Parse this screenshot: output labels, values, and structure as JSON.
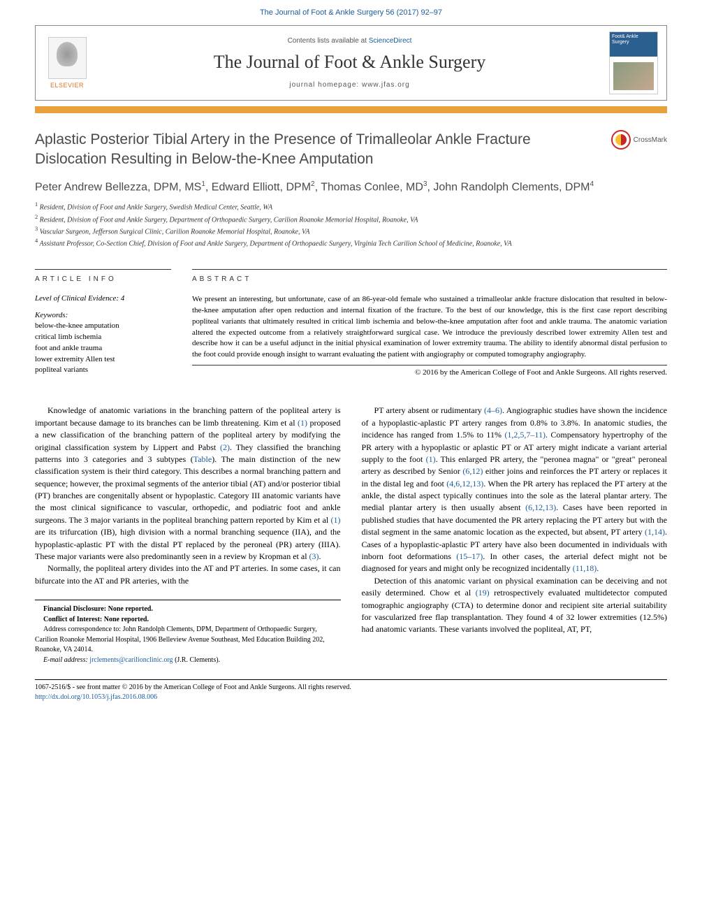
{
  "top_link": "The Journal of Foot & Ankle Surgery 56 (2017) 92–97",
  "header": {
    "contents_prefix": "Contents lists available at ",
    "contents_link": "ScienceDirect",
    "journal_name": "The Journal of Foot & Ankle Surgery",
    "homepage_label": "journal homepage: ",
    "homepage_url": "www.jfas.org",
    "elsevier": "ELSEVIER",
    "cover_text": "Foot& Ankle Surgery"
  },
  "colors": {
    "header_bar": "#e8a03c",
    "link": "#1a5c9e",
    "elsevier_orange": "#e37222",
    "cover_blue": "#2a5f8f"
  },
  "crossmark_label": "CrossMark",
  "title": "Aplastic Posterior Tibial Artery in the Presence of Trimalleolar Ankle Fracture Dislocation Resulting in Below-the-Knee Amputation",
  "authors_html": "Peter Andrew Bellezza, DPM, MS<sup>1</sup>, Edward Elliott, DPM<sup>2</sup>, Thomas Conlee, MD<sup>3</sup>, John Randolph Clements, DPM<sup>4</sup>",
  "affiliations": [
    "1 Resident, Division of Foot and Ankle Surgery, Swedish Medical Center, Seattle, WA",
    "2 Resident, Division of Foot and Ankle Surgery, Department of Orthopaedic Surgery, Carilion Roanoke Memorial Hospital, Roanoke, VA",
    "3 Vascular Surgeon, Jefferson Surgical Clinic, Carilion Roanoke Memorial Hospital, Roanoke, VA",
    "4 Assistant Professor, Co-Section Chief, Division of Foot and Ankle Surgery, Department of Orthopaedic Surgery, Virginia Tech Carilion School of Medicine, Roanoke, VA"
  ],
  "info": {
    "heading": "ARTICLE INFO",
    "evidence": "Level of Clinical Evidence: 4",
    "keywords_label": "Keywords:",
    "keywords": [
      "below-the-knee amputation",
      "critical limb ischemia",
      "foot and ankle trauma",
      "lower extremity Allen test",
      "popliteal variants"
    ]
  },
  "abstract": {
    "heading": "ABSTRACT",
    "text": "We present an interesting, but unfortunate, case of an 86-year-old female who sustained a trimalleolar ankle fracture dislocation that resulted in below-the-knee amputation after open reduction and internal fixation of the fracture. To the best of our knowledge, this is the first case report describing popliteal variants that ultimately resulted in critical limb ischemia and below-the-knee amputation after foot and ankle trauma. The anatomic variation altered the expected outcome from a relatively straightforward surgical case. We introduce the previously described lower extremity Allen test and describe how it can be a useful adjunct in the initial physical examination of lower extremity trauma. The ability to identify abnormal distal perfusion to the foot could provide enough insight to warrant evaluating the patient with angiography or computed tomography angiography.",
    "copyright": "© 2016 by the American College of Foot and Ankle Surgeons. All rights reserved."
  },
  "body": {
    "left": [
      "Knowledge of anatomic variations in the branching pattern of the popliteal artery is important because damage to its branches can be limb threatening. Kim et al <a>(1)</a> proposed a new classification of the branching pattern of the popliteal artery by modifying the original classification system by Lippert and Pabst <a>(2)</a>. They classified the branching patterns into 3 categories and 3 subtypes (<a>Table</a>). The main distinction of the new classification system is their third category. This describes a normal branching pattern and sequence; however, the proximal segments of the anterior tibial (AT) and/or posterior tibial (PT) branches are congenitally absent or hypoplastic. Category III anatomic variants have the most clinical significance to vascular, orthopedic, and podiatric foot and ankle surgeons. The 3 major variants in the popliteal branching pattern reported by Kim et al <a>(1)</a> are its trifurcation (IB), high division with a normal branching sequence (IIA), and the hypoplastic-aplastic PT with the distal PT replaced by the peroneal (PR) artery (IIIA). These major variants were also predominantly seen in a review by Kropman et al <a>(3)</a>.",
      "Normally, the popliteal artery divides into the AT and PT arteries. In some cases, it can bifurcate into the AT and PR arteries, with the"
    ],
    "right": [
      "PT artery absent or rudimentary <a>(4–6)</a>. Angiographic studies have shown the incidence of a hypoplastic-aplastic PT artery ranges from 0.8% to 3.8%. In anatomic studies, the incidence has ranged from 1.5% to 11% <a>(1,2,5,7–11)</a>. Compensatory hypertrophy of the PR artery with a hypoplastic or aplastic PT or AT artery might indicate a variant arterial supply to the foot <a>(1)</a>. This enlarged PR artery, the \"peronea magna\" or \"great\" peroneal artery as described by Senior <a>(6,12)</a> either joins and reinforces the PT artery or replaces it in the distal leg and foot <a>(4,6,12,13)</a>. When the PR artery has replaced the PT artery at the ankle, the distal aspect typically continues into the sole as the lateral plantar artery. The medial plantar artery is then usually absent <a>(6,12,13)</a>. Cases have been reported in published studies that have documented the PR artery replacing the PT artery but with the distal segment in the same anatomic location as the expected, but absent, PT artery <a>(1,14)</a>. Cases of a hypoplastic-aplastic PT artery have also been documented in individuals with inborn foot deformations <a>(15–17)</a>. In other cases, the arterial defect might not be diagnosed for years and might only be recognized incidentally <a>(11,18)</a>.",
      "Detection of this anatomic variant on physical examination can be deceiving and not easily determined. Chow et al <a>(19)</a> retrospectively evaluated multidetector computed tomographic angiography (CTA) to determine donor and recipient site arterial suitability for vascularized free flap transplantation. They found 4 of 32 lower extremities (12.5%) had anatomic variants. These variants involved the popliteal, AT, PT,"
    ]
  },
  "footnotes": {
    "financial": "Financial Disclosure: None reported.",
    "conflict": "Conflict of Interest: None reported.",
    "address": "Address correspondence to: John Randolph Clements, DPM, Department of Orthopaedic Surgery, Carilion Roanoke Memorial Hospital, 1906 Belleview Avenue Southeast, Med Education Building 202, Roanoke, VA 24014.",
    "email_label": "E-mail address: ",
    "email": "jrclements@carilionclinic.org",
    "email_suffix": " (J.R. Clements)."
  },
  "footer": {
    "line1": "1067-2516/$ - see front matter © 2016 by the American College of Foot and Ankle Surgeons. All rights reserved.",
    "doi": "http://dx.doi.org/10.1053/j.jfas.2016.08.006"
  }
}
